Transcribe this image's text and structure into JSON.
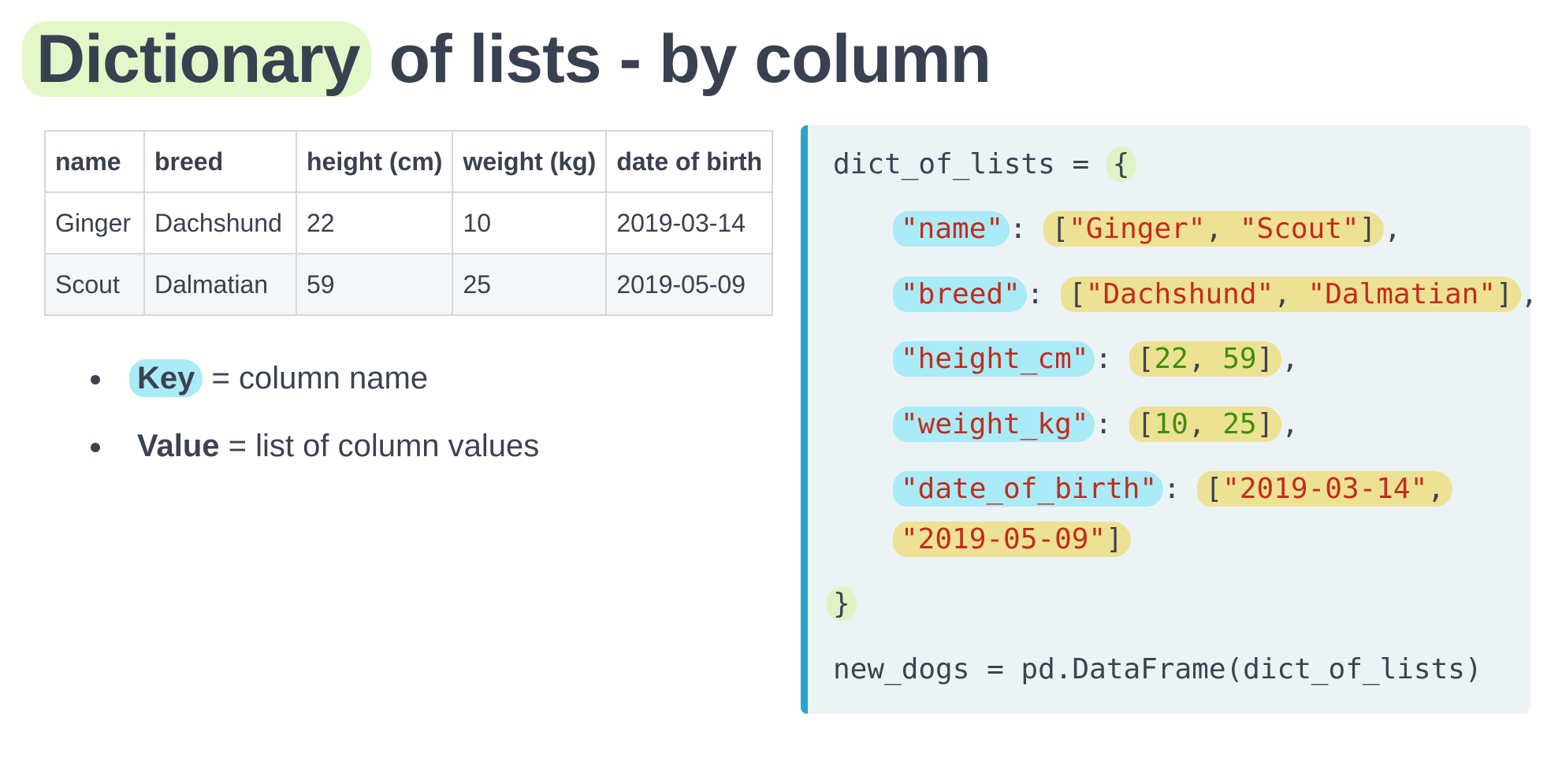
{
  "title": {
    "highlight": "Dictionary",
    "rest": " of lists - by column"
  },
  "table": {
    "headers": [
      "name",
      "breed",
      "height (cm)",
      "weight (kg)",
      "date of birth"
    ],
    "rows": [
      [
        "Ginger",
        "Dachshund",
        "22",
        "10",
        "2019-03-14"
      ],
      [
        "Scout",
        "Dalmatian",
        "59",
        "25",
        "2019-05-09"
      ]
    ]
  },
  "bullets": [
    {
      "term": "Key",
      "text": " = column name"
    },
    {
      "term": "Value",
      "text": " = list of column values"
    }
  ],
  "code": {
    "var_name": "dict_of_lists",
    "assign": " = ",
    "open_brace": "{",
    "close_brace": "}",
    "colon": ": ",
    "comma": ", ",
    "lbracket": "[",
    "rbracket": "]",
    "entries": [
      {
        "key": "\"name\"",
        "values": [
          "\"Ginger\"",
          "\"Scout\""
        ],
        "trailing": ","
      },
      {
        "key": "\"breed\"",
        "values": [
          "\"Dachshund\"",
          "\"Dalmatian\""
        ],
        "trailing": ","
      },
      {
        "key": "\"height_cm\"",
        "values": [
          "22",
          "59"
        ],
        "trailing": ","
      },
      {
        "key": "\"weight_kg\"",
        "values": [
          "10",
          "25"
        ],
        "trailing": ","
      },
      {
        "key": "\"date_of_birth\"",
        "values": [
          "\"2019-03-14\"",
          "\"2019-05-09\""
        ],
        "trailing": ""
      }
    ],
    "last_line": "new_dogs = pd.DataFrame(dict_of_lists)"
  },
  "colors": {
    "key_highlight": "#a9ebf6",
    "value_highlight": "#ede194",
    "brace_highlight": "#dff3c5",
    "title_highlight": "#e3f8c9",
    "string": "#c52a1d",
    "number": "#3f8f0b",
    "panel_accent": "#29a6cf",
    "panel_bg": "#ecf3f5"
  }
}
